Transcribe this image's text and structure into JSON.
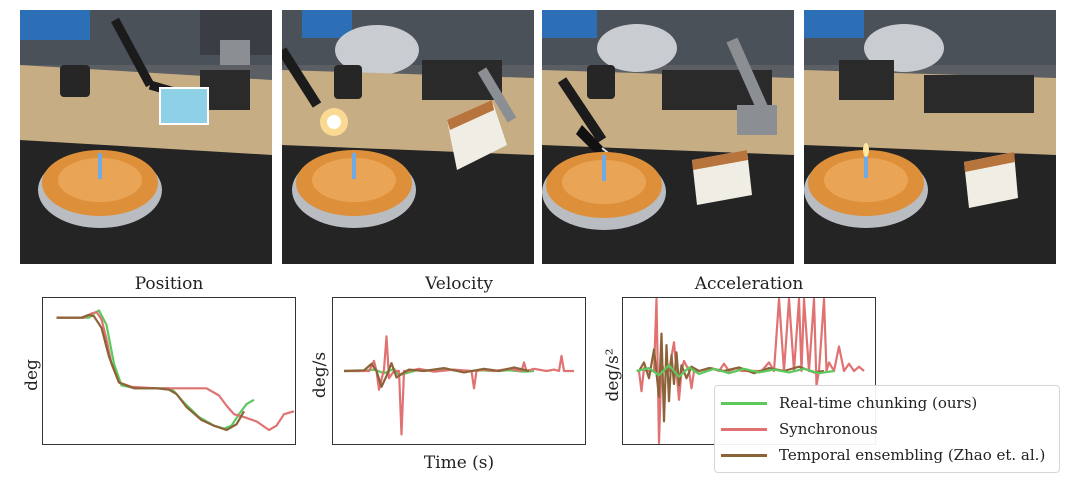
{
  "photos": [
    {
      "name": "robot-holding-lighter"
    },
    {
      "name": "robot-lighting-lighter"
    },
    {
      "name": "robot-lighting-candle"
    },
    {
      "name": "candle-lit"
    }
  ],
  "colors": {
    "rtc": "#5cc95c",
    "sync": "#e07272",
    "te": "#8c6239",
    "axis": "#333333"
  },
  "chart_data": [
    {
      "type": "line",
      "title": "Position",
      "xlabel": "",
      "ylabel": "deg",
      "xlim": [
        0,
        100
      ],
      "ylim": [
        0,
        100
      ],
      "series": [
        {
          "name": "Real-time chunking (ours)",
          "color": "#5cc95c",
          "x": [
            5,
            18,
            20,
            22,
            25,
            28,
            31,
            37,
            46,
            50,
            52,
            56,
            62,
            68,
            72,
            75,
            78,
            81,
            84
          ],
          "y": [
            87,
            87,
            90,
            92,
            82,
            55,
            40,
            38,
            38,
            38,
            36,
            28,
            18,
            12,
            10,
            12,
            20,
            27,
            30
          ]
        },
        {
          "name": "Synchronous",
          "color": "#e07272",
          "x": [
            5,
            16,
            19,
            21,
            23,
            25,
            27,
            30,
            35,
            45,
            55,
            65,
            70,
            73,
            76,
            80,
            85,
            90,
            93,
            96,
            100
          ],
          "y": [
            87,
            87,
            90,
            91,
            86,
            72,
            55,
            42,
            39,
            38,
            38,
            38,
            33,
            26,
            20,
            18,
            15,
            9,
            12,
            20,
            22
          ]
        },
        {
          "name": "Temporal ensembling (Zhao et. al.)",
          "color": "#8c6239",
          "x": [
            5,
            15,
            18,
            20,
            23,
            26,
            30,
            36,
            45,
            50,
            53,
            57,
            63,
            68,
            73,
            77,
            80
          ],
          "y": [
            87,
            87,
            89,
            88,
            80,
            60,
            42,
            38,
            38,
            37,
            34,
            25,
            16,
            12,
            9,
            13,
            22
          ]
        }
      ]
    },
    {
      "type": "line",
      "title": "Velocity",
      "xlabel": "Time (s)",
      "ylabel": "deg/s",
      "xlim": [
        0,
        100
      ],
      "ylim": [
        -100,
        100
      ],
      "series": [
        {
          "name": "Real-time chunking (ours)",
          "color": "#5cc95c",
          "x": [
            4,
            10,
            16,
            20,
            24,
            26,
            30,
            34,
            40,
            46,
            52,
            58,
            64,
            70,
            76,
            80
          ],
          "y": [
            0,
            0,
            2,
            -3,
            3,
            -6,
            -2,
            2,
            0,
            2,
            -1,
            1,
            0,
            1,
            -1,
            0
          ]
        },
        {
          "name": "Synchronous",
          "color": "#e07272",
          "x": [
            4,
            14,
            16,
            17,
            18,
            20,
            21,
            22,
            24,
            26,
            27,
            28,
            30,
            34,
            40,
            48,
            55,
            56,
            57,
            60,
            64,
            70,
            75,
            76,
            77,
            80,
            85,
            88,
            90,
            91,
            92,
            96
          ],
          "y": [
            0,
            0,
            14,
            0,
            -26,
            2,
            48,
            -10,
            0,
            0,
            -88,
            0,
            0,
            3,
            -1,
            2,
            0,
            -24,
            0,
            2,
            0,
            3,
            0,
            12,
            0,
            3,
            0,
            2,
            0,
            21,
            0,
            0
          ]
        },
        {
          "name": "Temporal ensembling (Zhao et. al.)",
          "color": "#8c6239",
          "x": [
            4,
            12,
            15,
            17,
            19,
            21,
            23,
            25,
            27,
            30,
            36,
            44,
            52,
            60,
            66,
            72,
            78
          ],
          "y": [
            0,
            1,
            10,
            0,
            -22,
            -7,
            11,
            -9,
            -4,
            2,
            0,
            4,
            -2,
            3,
            0,
            5,
            0
          ]
        }
      ]
    },
    {
      "type": "line",
      "title": "Acceleration",
      "xlabel": "",
      "ylabel": "deg/s²",
      "xlim": [
        0,
        100
      ],
      "ylim": [
        -100,
        100
      ],
      "series": [
        {
          "name": "Synchronous",
          "color": "#e07272",
          "x": [
            6,
            7,
            8,
            9,
            12,
            13,
            14,
            15,
            16,
            18,
            20,
            21,
            22,
            23,
            24,
            26,
            27,
            28,
            30,
            35,
            38,
            40,
            42,
            45,
            47,
            50,
            55,
            58,
            60,
            62,
            64,
            66,
            68,
            70,
            71,
            72,
            74,
            76,
            77,
            78,
            80,
            81,
            82,
            84,
            86,
            88,
            90,
            92,
            94,
            96
          ],
          "y": [
            0,
            -28,
            4,
            0,
            0,
            100,
            -100,
            12,
            0,
            0,
            40,
            0,
            -40,
            0,
            14,
            0,
            -24,
            0,
            0,
            4,
            0,
            10,
            0,
            4,
            0,
            0,
            0,
            12,
            0,
            100,
            0,
            100,
            0,
            100,
            0,
            100,
            0,
            100,
            -20,
            0,
            100,
            0,
            12,
            0,
            34,
            0,
            10,
            0,
            6,
            0
          ]
        },
        {
          "name": "Temporal ensembling (Zhao et. al.)",
          "color": "#8c6239",
          "x": [
            6,
            8,
            10,
            12,
            14,
            15,
            16,
            17,
            18,
            19,
            20,
            21,
            22,
            23,
            25,
            27,
            30,
            34,
            40,
            46,
            52,
            58,
            64,
            70,
            76,
            80
          ],
          "y": [
            0,
            12,
            -10,
            30,
            -36,
            52,
            -70,
            36,
            -42,
            22,
            -18,
            26,
            -20,
            8,
            -10,
            6,
            0,
            4,
            0,
            5,
            -3,
            4,
            0,
            6,
            -2,
            0
          ]
        },
        {
          "name": "Real-time chunking (ours)",
          "color": "#5cc95c",
          "x": [
            5,
            10,
            14,
            18,
            22,
            26,
            30,
            36,
            42,
            48,
            54,
            60,
            66,
            72,
            78,
            84
          ],
          "y": [
            0,
            4,
            -6,
            8,
            -8,
            5,
            -4,
            3,
            -3,
            3,
            -2,
            2,
            -2,
            3,
            -3,
            0
          ]
        }
      ]
    }
  ],
  "legend": {
    "placement": "bottom-right",
    "items": [
      {
        "label": "Real-time chunking (ours)",
        "color": "#5cc95c"
      },
      {
        "label": "Synchronous",
        "color": "#e07272"
      },
      {
        "label": "Temporal ensembling (Zhao et. al.)",
        "color": "#8c6239"
      }
    ]
  }
}
